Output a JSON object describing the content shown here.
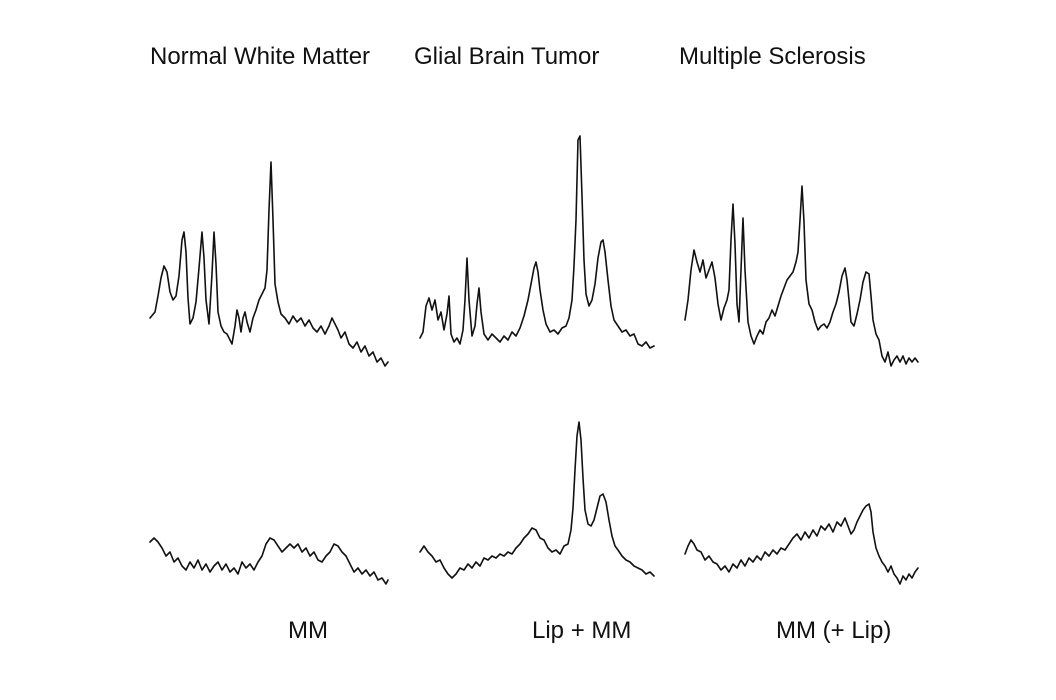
{
  "columns": [
    {
      "title": "Normal White Matter",
      "bottom_label": "MM"
    },
    {
      "title": "Glial Brain Tumor",
      "bottom_label": "Lip + MM"
    },
    {
      "title": "Multiple Sclerosis",
      "bottom_label": "MM (+ Lip)"
    }
  ],
  "colors": {
    "trace": "#111111",
    "text": "#111111",
    "background": "#ffffff"
  }
}
